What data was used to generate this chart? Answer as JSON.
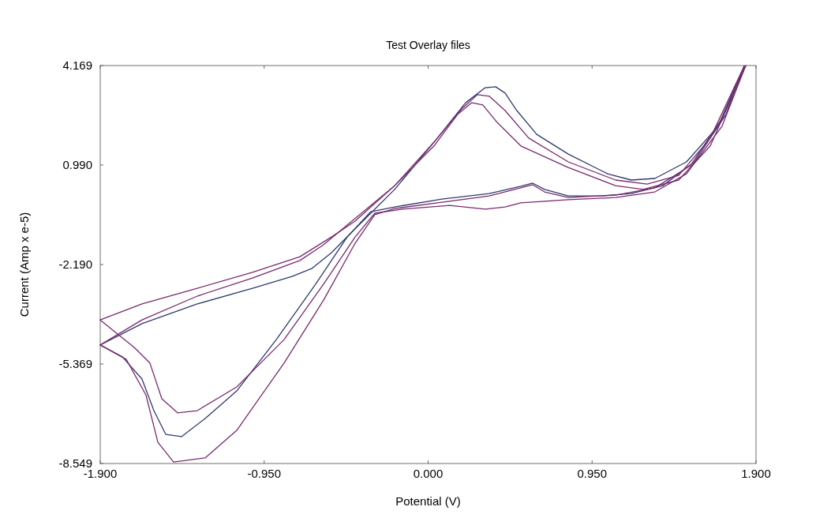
{
  "chart_data": {
    "type": "line",
    "title": "Test Overlay files",
    "xlabel": "Potential (V)",
    "ylabel": "Current (Amp x e-5)",
    "xlim": [
      -1.9,
      1.9
    ],
    "ylim": [
      -8.549,
      4.169
    ],
    "xticks": [
      {
        "value": -1.9,
        "label": "-1.900"
      },
      {
        "value": -0.95,
        "label": "-0.950"
      },
      {
        "value": 0,
        "label": "0.000"
      },
      {
        "value": 0.95,
        "label": "0.950"
      },
      {
        "value": 1.9,
        "label": "1.900"
      }
    ],
    "yticks": [
      {
        "value": -8.549,
        "label": "-8.549"
      },
      {
        "value": -5.369,
        "label": "-5.369"
      },
      {
        "value": -2.19,
        "label": "-2.190"
      },
      {
        "value": 0.99,
        "label": "0.990"
      },
      {
        "value": 4.169,
        "label": "4.169"
      }
    ],
    "grid": false,
    "marker": "none",
    "line_style": "solid",
    "series": [
      {
        "color": "#2e3a6e",
        "x": [
          -1.9,
          -1.658,
          -1.338,
          -1.018,
          -0.789,
          -0.675,
          -0.56,
          -0.423,
          -0.194,
          0.034,
          0.217,
          0.331,
          0.391,
          0.446,
          0.514,
          0.629,
          0.812,
          1.04,
          1.177,
          1.314,
          1.497,
          1.68,
          1.831
        ],
        "values": [
          -4.76,
          -4.08,
          -3.45,
          -2.95,
          -2.57,
          -2.32,
          -1.81,
          -1.05,
          0.21,
          1.72,
          2.98,
          3.46,
          3.49,
          3.29,
          2.73,
          1.97,
          1.34,
          0.71,
          0.51,
          0.56,
          1.09,
          2.23,
          4.15
        ]
      },
      {
        "color": "#2e3a6e",
        "x": [
          1.831,
          1.726,
          1.543,
          1.36,
          1.177,
          0.994,
          0.812,
          0.675,
          0.606,
          0.537,
          0.354,
          0.08,
          -0.194,
          -0.332,
          -0.469,
          -0.652,
          -0.88,
          -1.109,
          -1.292,
          -1.429,
          -1.52,
          -1.589,
          -1.658,
          -1.772,
          -1.9
        ],
        "values": [
          4.15,
          2.61,
          1.09,
          0.33,
          0.08,
          0.0,
          0.0,
          0.21,
          0.41,
          0.31,
          0.08,
          -0.1,
          -0.35,
          -0.5,
          -1.31,
          -2.82,
          -4.59,
          -6.23,
          -7.11,
          -7.69,
          -7.62,
          -6.86,
          -5.85,
          -5.14,
          -4.76
        ]
      },
      {
        "color": "#7a2a6e",
        "x": [
          -1.9,
          -1.658,
          -1.338,
          -1.018,
          -0.743,
          -0.606,
          -0.469,
          -0.194,
          0.034,
          0.194,
          0.286,
          0.354,
          0.446,
          0.583,
          0.812,
          1.086,
          1.269,
          1.452,
          1.635,
          1.818,
          1.84
        ],
        "values": [
          -4.76,
          -3.96,
          -3.2,
          -2.62,
          -2.06,
          -1.56,
          -0.93,
          0.33,
          1.72,
          2.78,
          3.24,
          3.19,
          2.73,
          1.85,
          1.09,
          0.51,
          0.38,
          0.66,
          1.85,
          3.99,
          4.16
        ]
      },
      {
        "color": "#7a2a6e",
        "x": [
          1.84,
          1.703,
          1.52,
          1.314,
          1.086,
          0.812,
          0.675,
          0.606,
          0.537,
          0.354,
          0.08,
          -0.194,
          -0.309,
          -0.423,
          -0.606,
          -0.835,
          -1.109,
          -1.292,
          -1.475,
          -1.566,
          -1.635,
          -1.749,
          -1.9
        ],
        "values": [
          4.16,
          2.48,
          0.97,
          0.26,
          0.03,
          -0.05,
          0.13,
          0.36,
          0.26,
          0.0,
          -0.2,
          -0.4,
          -0.6,
          -1.51,
          -3.33,
          -5.34,
          -7.49,
          -8.37,
          -8.5,
          -7.87,
          -6.36,
          -5.22,
          -4.76
        ]
      },
      {
        "color": "#7a2a6e",
        "x": [
          -1.9,
          -1.658,
          -1.338,
          -1.018,
          -0.743,
          -0.56,
          -0.423,
          -0.194,
          0.034,
          0.171,
          0.253,
          0.317,
          0.4,
          0.537,
          0.812,
          1.086,
          1.246,
          1.452,
          1.635,
          1.84
        ],
        "values": [
          -3.96,
          -3.45,
          -2.95,
          -2.44,
          -1.94,
          -1.31,
          -0.8,
          0.33,
          1.6,
          2.61,
          2.98,
          2.91,
          2.35,
          1.6,
          0.91,
          0.33,
          0.21,
          0.51,
          1.6,
          4.16
        ]
      },
      {
        "color": "#7a2a6e",
        "x": [
          1.84,
          1.703,
          1.497,
          1.314,
          1.086,
          0.812,
          0.537,
          0.446,
          0.331,
          0.125,
          -0.149,
          -0.309,
          -0.423,
          -0.606,
          -0.835,
          -1.109,
          -1.338,
          -1.452,
          -1.543,
          -1.612,
          -1.703,
          -1.818,
          -1.9
        ],
        "values": [
          4.16,
          2.23,
          0.71,
          0.13,
          -0.05,
          -0.12,
          -0.22,
          -0.35,
          -0.42,
          -0.3,
          -0.42,
          -0.55,
          -1.31,
          -2.82,
          -4.59,
          -6.1,
          -6.86,
          -6.93,
          -6.48,
          -5.34,
          -4.84,
          -4.33,
          -3.96
        ]
      }
    ]
  }
}
